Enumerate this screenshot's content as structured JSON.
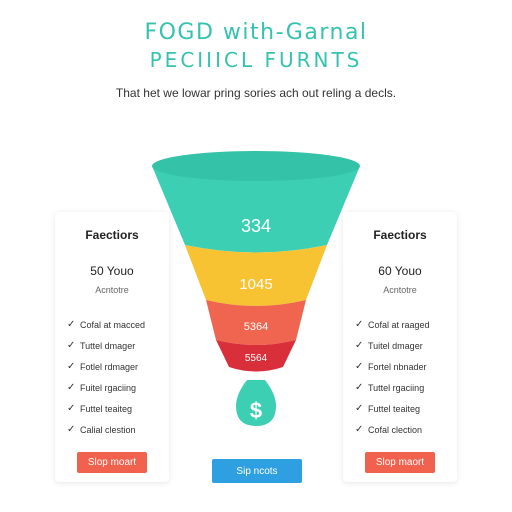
{
  "header": {
    "title_line1": "FOGD with-Garnal",
    "title_line2": "PECIIICL FURNTS",
    "subtitle": "That het we lowar pring sories ach out reling a decls."
  },
  "funnel": {
    "stages": [
      {
        "label": "334",
        "color": "#3dcfb4"
      },
      {
        "label": "1045",
        "color": "#f8c332"
      },
      {
        "label": "5364",
        "color": "#f06550"
      },
      {
        "label": "5564",
        "color": "#d92f3b"
      }
    ],
    "bottom_icon": "dollar-drop-icon",
    "bottom_icon_symbol": "$",
    "bottom_icon_color": "#3dcfb4"
  },
  "cards": [
    {
      "title": "Faectiors",
      "price": "50 Youo",
      "sub": "Acntotre",
      "features": [
        "Cofal at macced",
        "Tuttel dmager",
        "Fotlel rdmager",
        "Fuitel rgaciing",
        "Futtel teaiteg",
        "Calial clestion"
      ],
      "button": "Slop moart"
    },
    {
      "title": "Faectiors",
      "price": "60 Youo",
      "sub": "Acntotre",
      "features": [
        "Cofal at raaged",
        "Tuitel dmager",
        "Fortel nbnader",
        "Tuttel rgaciing",
        "Futtel teaiteg",
        "Cofal clection"
      ],
      "button": "Slop maort"
    }
  ],
  "main_button": "Sip ncots",
  "colors": {
    "accent": "#35c3b0",
    "card_button": "#f0614e",
    "main_button": "#2e9fe0"
  }
}
